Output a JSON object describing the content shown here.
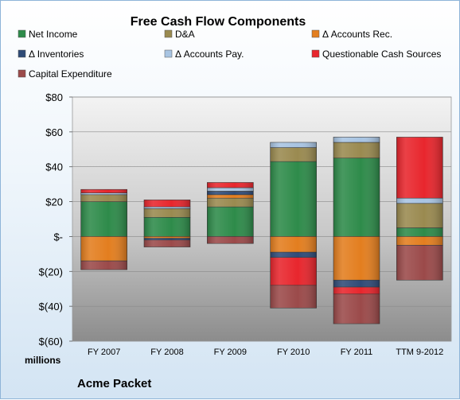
{
  "chart_data": {
    "type": "bar",
    "stacked": true,
    "title": "Free Cash Flow Components",
    "units_label": "millions",
    "footer": "Acme Packet",
    "categories": [
      "FY 2007",
      "FY 2008",
      "FY 2009",
      "FY 2010",
      "FY 2011",
      "TTM 9-2012"
    ],
    "ylim": [
      -60,
      80
    ],
    "yticks": [
      "$80",
      "$60",
      "$40",
      "$20",
      "$-",
      "$(20)",
      "$(40)",
      "$(60)"
    ],
    "ytick_values": [
      80,
      60,
      40,
      20,
      0,
      -20,
      -40,
      -60
    ],
    "grid": true,
    "legend_position": "top",
    "series": [
      {
        "name": "Net Income",
        "color": "#2e8b4a",
        "values": [
          20,
          11,
          17,
          43,
          45,
          5
        ]
      },
      {
        "name": "D&A",
        "color": "#9a8a50",
        "values": [
          4,
          5,
          5,
          8,
          9,
          14
        ]
      },
      {
        "name": "Δ Accounts Rec.",
        "color": "#e37e1f",
        "values": [
          -14,
          -1,
          2,
          -9,
          -25,
          -5
        ]
      },
      {
        "name": "Δ Inventories",
        "color": "#2f4b77",
        "values": [
          0,
          -1,
          2,
          -3,
          -4,
          0
        ]
      },
      {
        "name": "Δ Accounts Pay.",
        "color": "#a8c4e2",
        "values": [
          1,
          1,
          2,
          3,
          3,
          3
        ]
      },
      {
        "name": "Questionable Cash Sources",
        "color": "#e8262d",
        "values": [
          2,
          4,
          3,
          -16,
          -4,
          35
        ]
      },
      {
        "name": "Capital Expenditure",
        "color": "#9b4a4a",
        "values": [
          -5,
          -4,
          -4,
          -13,
          -17,
          -20
        ]
      }
    ]
  }
}
